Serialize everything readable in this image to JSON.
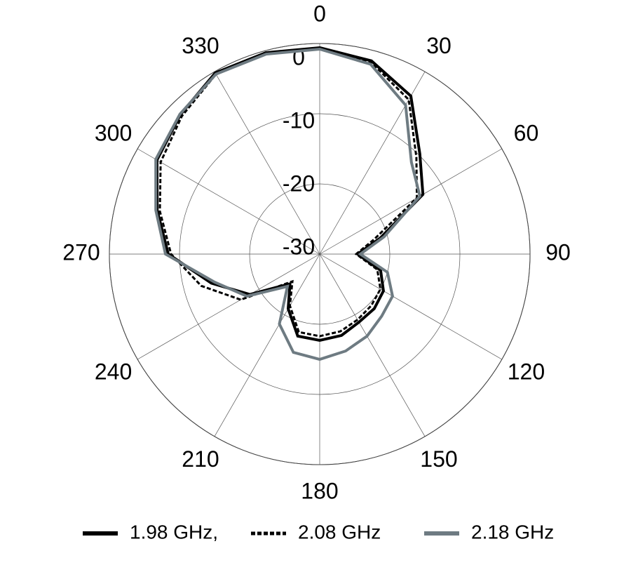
{
  "chart_data": {
    "type": "polar",
    "theta": [
      0,
      15,
      30,
      45,
      60,
      75,
      90,
      105,
      120,
      135,
      150,
      165,
      180,
      195,
      210,
      225,
      240,
      255,
      270,
      285,
      300,
      315,
      330,
      345
    ],
    "series": [
      {
        "name": "1.98 GHz,",
        "color": "#000000",
        "dash": false,
        "values": [
          -0.6,
          -1.5,
          -4,
          -9.8,
          -13,
          -21,
          -24.6,
          -21,
          -19.5,
          -19,
          -18.8,
          -18,
          -17.7,
          -17.9,
          -21,
          -24,
          -18.5,
          -14,
          -8.4,
          -6,
          -3.2,
          -1.9,
          -0.2,
          -0.3
        ]
      },
      {
        "name": "2.08 GHz",
        "color": "#000000",
        "dash": true,
        "values": [
          -0.7,
          -1.7,
          -4.6,
          -10.5,
          -14,
          -22,
          -24.8,
          -21.5,
          -20,
          -19.6,
          -19.2,
          -18.6,
          -18.3,
          -18.5,
          -21.5,
          -24.5,
          -17,
          -12.5,
          -8.8,
          -6.4,
          -3.8,
          -2.2,
          -0.4,
          -0.5
        ]
      },
      {
        "name": "2.18 GHz",
        "color": "#6e7b82",
        "dash": false,
        "values": [
          -0.8,
          -2,
          -5.5,
          -11.5,
          -13.5,
          -20.5,
          -24.2,
          -20,
          -18,
          -17.5,
          -16.5,
          -15.7,
          -15,
          -15.5,
          -18.5,
          -23.5,
          -18,
          -14.5,
          -8,
          -5.8,
          -3,
          -1.8,
          -0.4,
          -0.5
        ]
      }
    ],
    "rlim": [
      -30,
      0
    ],
    "rticks": [
      -30,
      -20,
      -10,
      0
    ],
    "thetaticks": [
      0,
      30,
      60,
      90,
      120,
      150,
      180,
      210,
      240,
      270,
      300,
      330
    ],
    "legend": "bottom"
  }
}
